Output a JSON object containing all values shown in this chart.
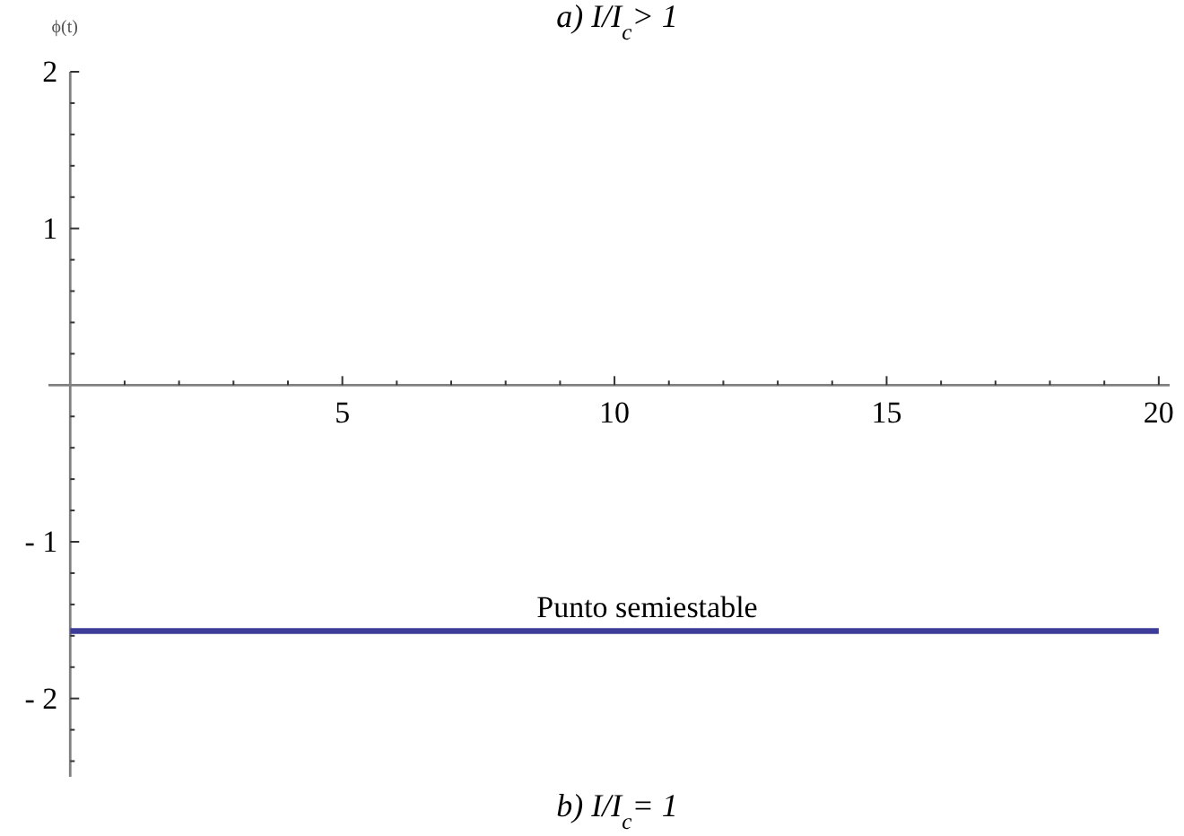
{
  "chart_data": {
    "type": "line",
    "title": "b) I/I$_{c}$= 1",
    "ylabel": "ϕ(t)",
    "annotations": [
      "a) I/I$_{c}$> 1",
      {
        "text": "Punto semiestable",
        "x": 10.6,
        "y": -1.57
      }
    ],
    "x": [
      0,
      20
    ],
    "series": [
      {
        "color": "#3d3d99",
        "values": [
          -1.57,
          -1.57
        ]
      }
    ],
    "xlim": [
      -0.4,
      20.2
    ],
    "xticks": [
      {
        "value": 1,
        "label": null
      },
      {
        "value": 2,
        "label": null
      },
      {
        "value": 3,
        "label": null
      },
      {
        "value": 4,
        "label": null
      },
      5,
      {
        "value": 6,
        "label": null
      },
      {
        "value": 7,
        "label": null
      },
      {
        "value": 8,
        "label": null
      },
      {
        "value": 9,
        "label": null
      },
      10,
      {
        "value": 11,
        "label": null
      },
      {
        "value": 12,
        "label": null
      },
      {
        "value": 13,
        "label": null
      },
      {
        "value": 14,
        "label": null
      },
      15,
      {
        "value": 16,
        "label": null
      },
      {
        "value": 17,
        "label": null
      },
      {
        "value": 18,
        "label": null
      },
      {
        "value": 19,
        "label": null
      },
      20
    ],
    "ylim": [
      -2.5,
      2
    ],
    "yticks": [
      {
        "value": -2.4,
        "label": null
      },
      {
        "value": -2.2,
        "label": null
      },
      {
        "value": -2,
        "label": "- 2"
      },
      {
        "value": -1.8,
        "label": null
      },
      {
        "value": -1.6,
        "label": null
      },
      {
        "value": -1.4,
        "label": null
      },
      {
        "value": -1.2,
        "label": null
      },
      {
        "value": -1,
        "label": "- 1"
      },
      {
        "value": -0.8,
        "label": null
      },
      {
        "value": -0.6,
        "label": null
      },
      {
        "value": -0.4,
        "label": null
      },
      {
        "value": -0.2,
        "label": null
      },
      {
        "value": 0.2,
        "label": null
      },
      {
        "value": 0.4,
        "label": null
      },
      {
        "value": 0.6,
        "label": null
      },
      {
        "value": 0.8,
        "label": null
      },
      1,
      {
        "value": 1.2,
        "label": null
      },
      {
        "value": 1.4,
        "label": null
      },
      {
        "value": 1.6,
        "label": null
      },
      {
        "value": 1.8,
        "label": null
      },
      2
    ],
    "marker": "none",
    "line_style": "solid"
  }
}
